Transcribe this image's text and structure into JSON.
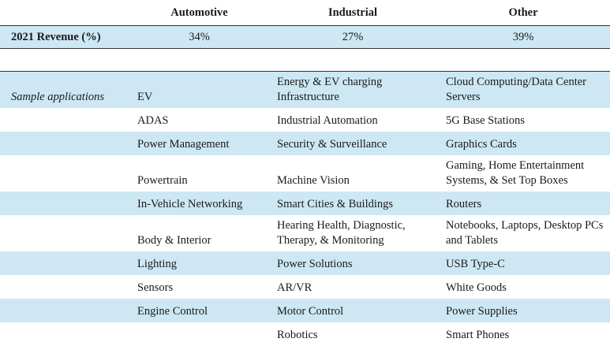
{
  "header": {
    "col1": "Automotive",
    "col2": "Industrial",
    "col3": "Other"
  },
  "revenue": {
    "label": "2021 Revenue (%)",
    "automotive": "34%",
    "industrial": "27%",
    "other": "39%"
  },
  "sample_label": "Sample applications",
  "rows": [
    {
      "automotive": "EV",
      "industrial": "Energy & EV charging Infrastructure",
      "other": "Cloud Computing/Data Center Servers"
    },
    {
      "automotive": "ADAS",
      "industrial": "Industrial Automation",
      "other": "5G Base Stations"
    },
    {
      "automotive": "Power Management",
      "industrial": "Security & Surveillance",
      "other": "Graphics Cards"
    },
    {
      "automotive": "Powertrain",
      "industrial": "Machine Vision",
      "other": "Gaming, Home Entertainment Systems, & Set Top Boxes"
    },
    {
      "automotive": "In-Vehicle Networking",
      "industrial": "Smart Cities & Buildings",
      "other": "Routers"
    },
    {
      "automotive": "Body & Interior",
      "industrial": "Hearing Health, Diagnostic, Therapy, & Monitoring",
      "other": "Notebooks, Laptops, Desktop PCs and Tablets"
    },
    {
      "automotive": "Lighting",
      "industrial": "Power Solutions",
      "other": "USB Type-C"
    },
    {
      "automotive": "Sensors",
      "industrial": "AR/VR",
      "other": "White Goods"
    },
    {
      "automotive": "Engine Control",
      "industrial": "Motor Control",
      "other": "Power Supplies"
    },
    {
      "automotive": "",
      "industrial": "Robotics",
      "other": "Smart Phones"
    }
  ]
}
